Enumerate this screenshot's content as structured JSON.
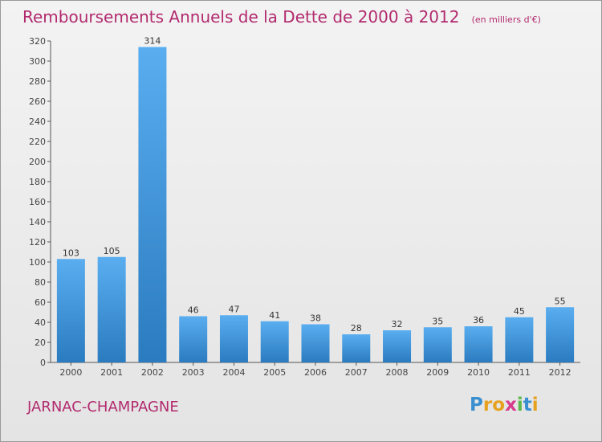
{
  "chart_data": {
    "type": "bar",
    "title": "Remboursements Annuels de la Dette de 2000 à 2012",
    "unit": "(en milliers d'€)",
    "categories": [
      "2000",
      "2001",
      "2002",
      "2003",
      "2004",
      "2005",
      "2006",
      "2007",
      "2008",
      "2009",
      "2010",
      "2011",
      "2012"
    ],
    "values": [
      103,
      105,
      314,
      46,
      47,
      41,
      38,
      28,
      32,
      35,
      36,
      45,
      55
    ],
    "ylim": [
      0,
      320
    ],
    "yticks": [
      0,
      20,
      40,
      60,
      80,
      100,
      120,
      140,
      160,
      180,
      200,
      220,
      240,
      260,
      280,
      300,
      320
    ],
    "grid": false,
    "bar_color": "#3a93d6"
  },
  "commune": "JARNAC-CHAMPAGNE",
  "logo": {
    "letters": [
      "P",
      "r",
      "o",
      "x",
      "i",
      "t",
      "i"
    ],
    "colors": [
      "#3a8fd0",
      "#e6a21e",
      "#e6a21e",
      "#d83b8c",
      "#5ab94a",
      "#3a8fd0",
      "#e6a21e"
    ]
  }
}
